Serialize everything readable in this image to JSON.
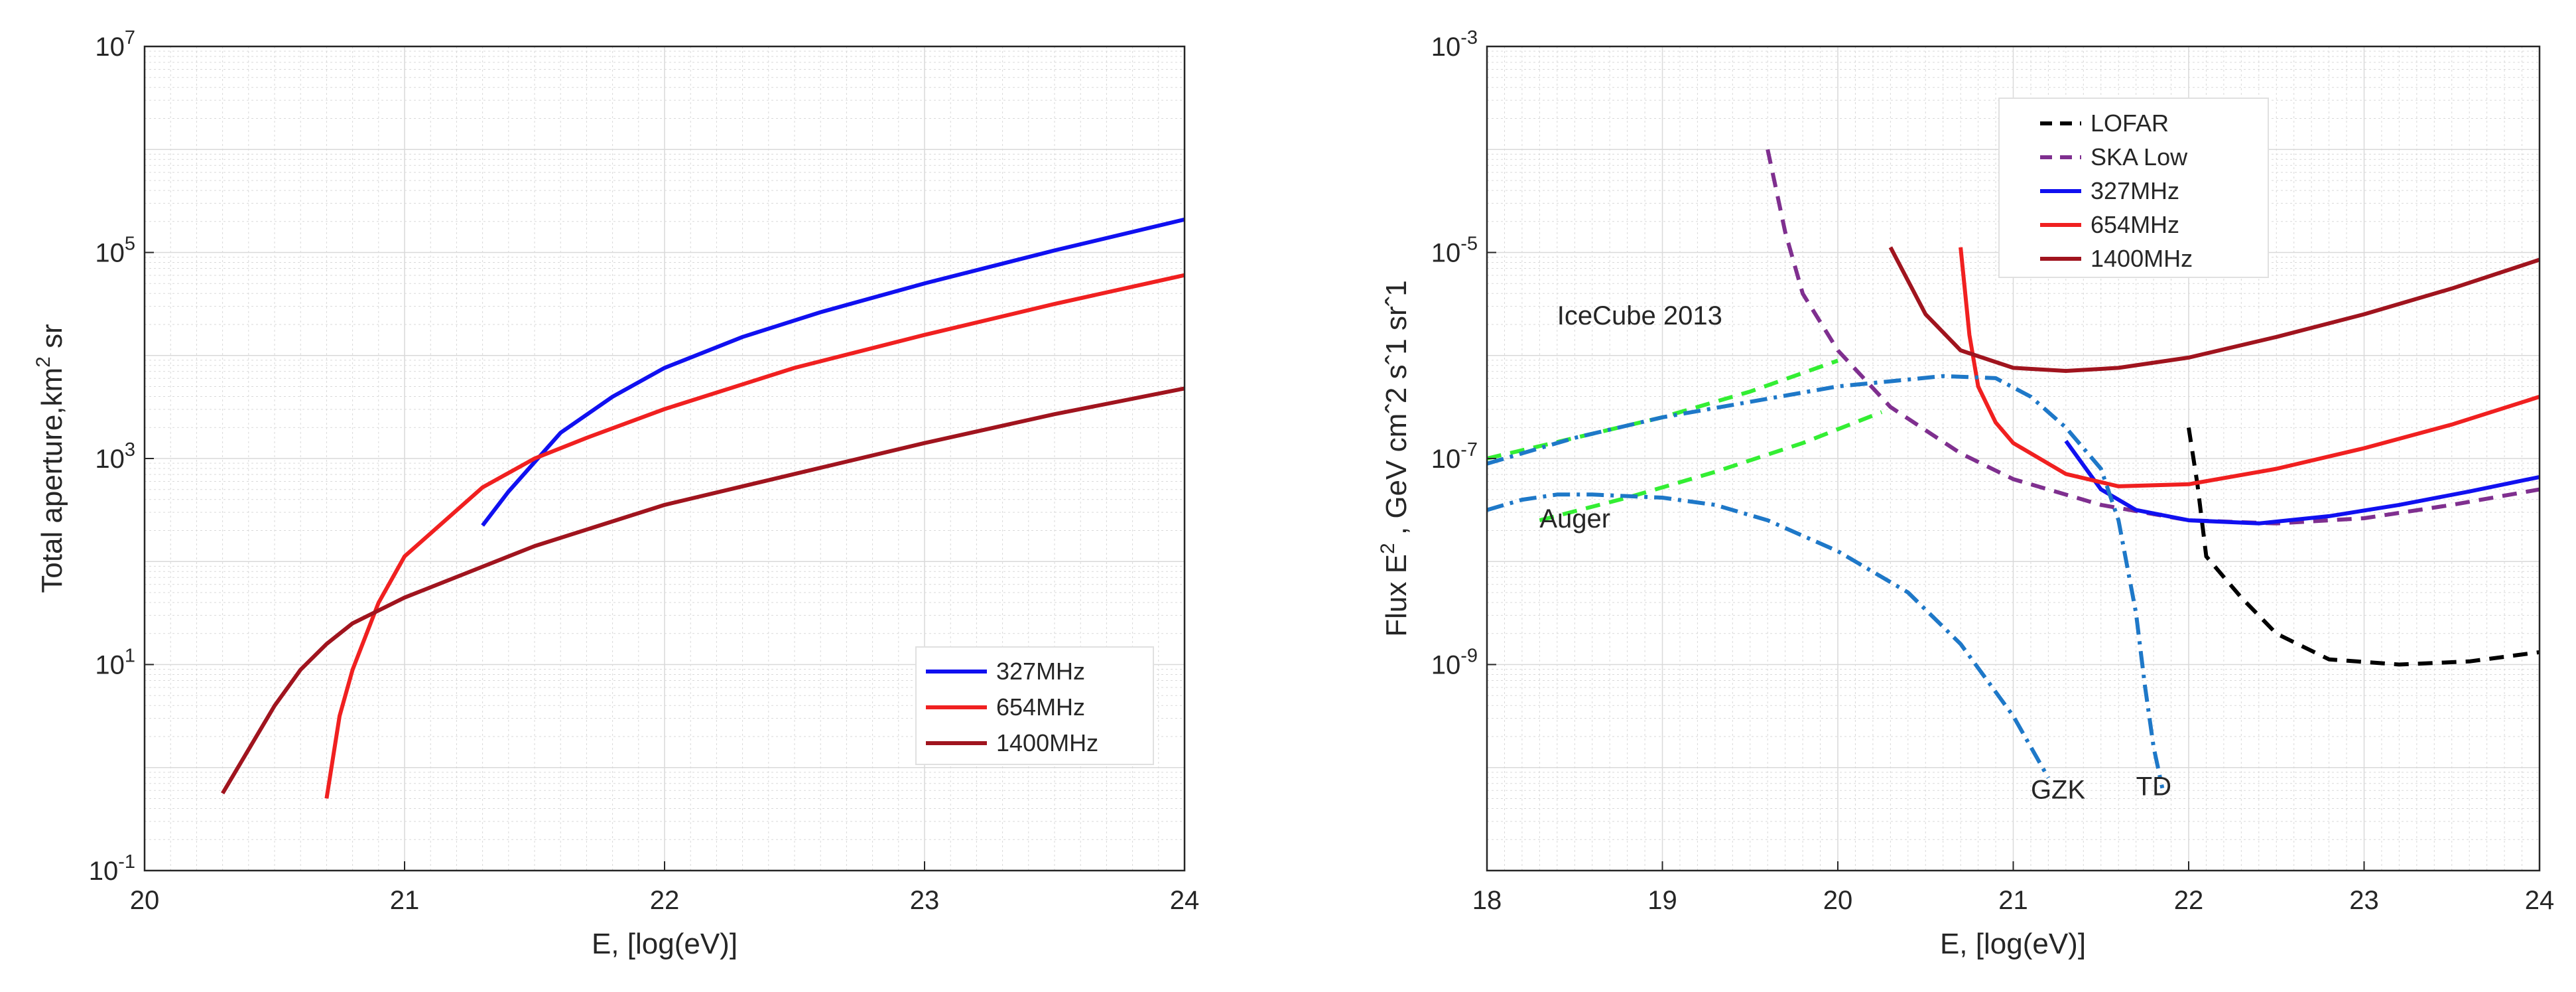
{
  "colors": {
    "blue": "#1010f0",
    "red": "#f02020",
    "darkred": "#a0141e",
    "black": "#000000",
    "purple": "#7f2f8f",
    "green": "#33ee33",
    "steel": "#1e78c8",
    "grid": "#d9d9d9",
    "axis": "#262626"
  },
  "chart_data": [
    {
      "type": "line",
      "title": "",
      "xlabel": "E, [log(eV)]",
      "ylabel": "Total aperture,km",
      "ylabel_sup": "2",
      "ylabel_tail": " sr",
      "xlim": [
        20,
        24
      ],
      "ylim_log10": [
        -1,
        7
      ],
      "xticks": [
        "20",
        "21",
        "22",
        "23",
        "24"
      ],
      "yticks": [
        {
          "base": "10",
          "exp": "-1",
          "log": -1
        },
        {
          "base": "10",
          "exp": "1",
          "log": 1
        },
        {
          "base": "10",
          "exp": "3",
          "log": 3
        },
        {
          "base": "10",
          "exp": "5",
          "log": 5
        },
        {
          "base": "10",
          "exp": "7",
          "log": 7
        }
      ],
      "legend": {
        "position": "bottom-right",
        "entries": [
          "327MHz",
          "654MHz",
          "1400MHz"
        ]
      },
      "series": [
        {
          "name": "327MHz",
          "color": "blue",
          "dash": "solid",
          "x": [
            21.3,
            21.4,
            21.6,
            21.8,
            22.0,
            22.3,
            22.6,
            23.0,
            23.5,
            24.0
          ],
          "log10y": [
            2.35,
            2.68,
            3.25,
            3.6,
            3.88,
            4.18,
            4.42,
            4.7,
            5.02,
            5.32
          ]
        },
        {
          "name": "654MHz",
          "color": "red",
          "dash": "solid",
          "x": [
            20.7,
            20.75,
            20.8,
            20.9,
            21.0,
            21.3,
            21.5,
            21.7,
            22.0,
            22.5,
            23.0,
            23.5,
            24.0
          ],
          "log10y": [
            -0.3,
            0.5,
            0.95,
            1.6,
            2.05,
            2.72,
            3.0,
            3.2,
            3.48,
            3.88,
            4.2,
            4.5,
            4.78
          ]
        },
        {
          "name": "1400MHz",
          "color": "darkred",
          "dash": "solid",
          "x": [
            20.3,
            20.5,
            20.6,
            20.7,
            20.8,
            21.0,
            21.3,
            21.5,
            22.0,
            22.5,
            23.0,
            23.5,
            24.0
          ],
          "log10y": [
            -0.25,
            0.6,
            0.95,
            1.2,
            1.4,
            1.65,
            1.95,
            2.15,
            2.55,
            2.85,
            3.15,
            3.43,
            3.68
          ]
        }
      ]
    },
    {
      "type": "line",
      "title": "",
      "xlabel": "E, [log(eV)]",
      "ylabel": "Flux E",
      "ylabel_sup": "2",
      "ylabel_tail": " , GeV cmˆ2 sˆ1 srˆ1",
      "xlim": [
        18,
        24
      ],
      "ylim_log10": [
        -11,
        -3
      ],
      "xticks": [
        "18",
        "19",
        "20",
        "21",
        "22",
        "23",
        "24"
      ],
      "yticks": [
        {
          "base": "10",
          "exp": "-9",
          "log": -9
        },
        {
          "base": "10",
          "exp": "-7",
          "log": -7
        },
        {
          "base": "10",
          "exp": "-5",
          "log": -5
        },
        {
          "base": "10",
          "exp": "-3",
          "log": -3
        }
      ],
      "legend": {
        "position": "top-center",
        "entries": [
          "LOFAR",
          "SKA Low",
          "327MHz",
          "654MHz",
          "1400MHz"
        ]
      },
      "annotations": [
        {
          "text": "IceCube 2013",
          "x": 18.4,
          "log10y": -5.7
        },
        {
          "text": "Auger",
          "x": 18.3,
          "log10y": -7.67
        },
        {
          "text": "GZK",
          "x": 21.1,
          "log10y": -10.3
        },
        {
          "text": "TD",
          "x": 21.7,
          "log10y": -10.27
        }
      ],
      "series": [
        {
          "name": "LOFAR",
          "color": "black",
          "dash": "dash",
          "x": [
            22.0,
            22.05,
            22.1,
            22.3,
            22.5,
            22.8,
            23.2,
            23.6,
            24.0
          ],
          "log10y": [
            -6.7,
            -7.25,
            -7.95,
            -8.35,
            -8.7,
            -8.95,
            -9.0,
            -8.97,
            -8.88
          ]
        },
        {
          "name": "SKA Low",
          "color": "purple",
          "dash": "dash",
          "x": [
            19.6,
            19.7,
            19.8,
            20.0,
            20.3,
            20.7,
            21.0,
            21.5,
            22.0,
            22.5,
            23.0,
            23.5,
            24.0
          ],
          "log10y": [
            -4.0,
            -4.8,
            -5.4,
            -5.95,
            -6.5,
            -6.95,
            -7.2,
            -7.45,
            -7.6,
            -7.63,
            -7.58,
            -7.45,
            -7.3
          ]
        },
        {
          "name": "327MHz",
          "color": "blue",
          "dash": "solid",
          "x": [
            21.3,
            21.5,
            21.7,
            22.0,
            22.4,
            22.8,
            23.2,
            23.6,
            24.0
          ],
          "log10y": [
            -6.83,
            -7.3,
            -7.5,
            -7.6,
            -7.63,
            -7.56,
            -7.45,
            -7.32,
            -7.18
          ]
        },
        {
          "name": "654MHz",
          "color": "red",
          "dash": "solid",
          "x": [
            20.7,
            20.75,
            20.8,
            20.9,
            21.0,
            21.3,
            21.6,
            22.0,
            22.5,
            23.0,
            23.5,
            24.0
          ],
          "log10y": [
            -4.95,
            -5.8,
            -6.3,
            -6.65,
            -6.85,
            -7.15,
            -7.27,
            -7.25,
            -7.1,
            -6.9,
            -6.67,
            -6.4
          ]
        },
        {
          "name": "1400MHz",
          "color": "darkred",
          "dash": "solid",
          "x": [
            20.3,
            20.5,
            20.7,
            21.0,
            21.3,
            21.6,
            22.0,
            22.5,
            23.0,
            23.5,
            24.0
          ],
          "log10y": [
            -4.95,
            -5.6,
            -5.95,
            -6.12,
            -6.15,
            -6.12,
            -6.02,
            -5.82,
            -5.6,
            -5.35,
            -5.07
          ]
        },
        {
          "name": "IceCube 2013",
          "color": "green",
          "dash": "dash",
          "legend": false,
          "x": [
            18.0,
            18.5,
            19.0,
            19.5,
            20.0
          ],
          "log10y": [
            -7.0,
            -6.8,
            -6.6,
            -6.35,
            -6.05
          ]
        },
        {
          "name": "Auger",
          "color": "green",
          "dash": "dash",
          "legend": false,
          "x": [
            18.3,
            18.8,
            19.3,
            19.8,
            20.25
          ],
          "log10y": [
            -7.6,
            -7.38,
            -7.13,
            -6.85,
            -6.55
          ]
        },
        {
          "name": "GZK",
          "color": "steel",
          "dash": "dashdot",
          "legend": false,
          "x": [
            18.0,
            18.2,
            18.4,
            18.6,
            19.0,
            19.3,
            19.6,
            20.0,
            20.4,
            20.7,
            21.0,
            21.2
          ],
          "log10y": [
            -7.5,
            -7.4,
            -7.35,
            -7.35,
            -7.38,
            -7.45,
            -7.6,
            -7.9,
            -8.3,
            -8.8,
            -9.5,
            -10.1
          ]
        },
        {
          "name": "TD",
          "color": "steel",
          "dash": "dashdot",
          "legend": false,
          "x": [
            18.0,
            18.5,
            19.0,
            19.5,
            20.0,
            20.3,
            20.6,
            20.9,
            21.1,
            21.3,
            21.5,
            21.6,
            21.7,
            21.75,
            21.8,
            21.85
          ],
          "log10y": [
            -7.05,
            -6.8,
            -6.6,
            -6.45,
            -6.3,
            -6.25,
            -6.2,
            -6.22,
            -6.4,
            -6.7,
            -7.1,
            -7.6,
            -8.5,
            -9.2,
            -9.8,
            -10.2
          ]
        }
      ]
    }
  ]
}
